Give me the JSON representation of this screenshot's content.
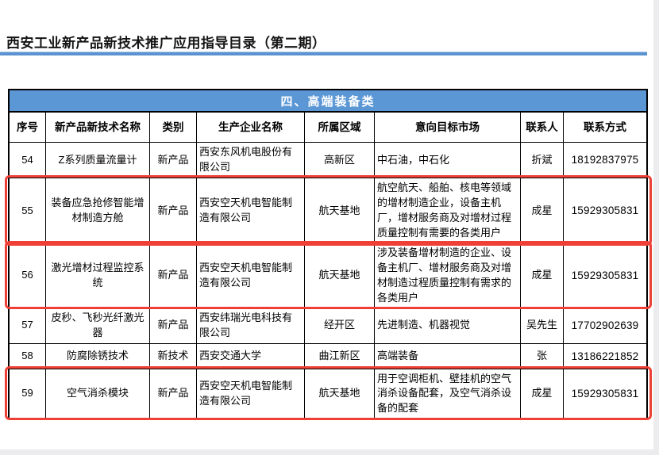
{
  "page": {
    "title": "西安工业新产品新技术推广应用指导目录（第二期）"
  },
  "table": {
    "section_title": "四、高端装备类",
    "columns": [
      "序号",
      "新产品新技术名称",
      "类别",
      "生产企业名称",
      "所属区域",
      "意向目标市场",
      "联系人",
      "联系方式"
    ],
    "rows": [
      {
        "no": "54",
        "name": "Z系列质量流量计",
        "category": "新产品",
        "company": "西安东风机电股份有限公司",
        "region": "高新区",
        "market": "中石油，中石化",
        "contact": "折斌",
        "phone": "18192837975",
        "highlighted": false
      },
      {
        "no": "55",
        "name": "装备应急抢修智能增材制造方舱",
        "category": "新产品",
        "company": "西安空天机电智能制造有限公司",
        "region": "航天基地",
        "market": "航空航天、船舶、核电等领域的增材制造企业，设备主机厂，增材服务商及对增材过程质量控制有需要的各类用户",
        "contact": "成星",
        "phone": "15929305831",
        "highlighted": true
      },
      {
        "no": "56",
        "name": "激光增材过程监控系统",
        "category": "新产品",
        "company": "西安空天机电智能制造有限公司",
        "region": "航天基地",
        "market": "涉及装备增材制造的企业、设备主机厂、增材服务商及对增材制造过程质量控制有需求的各类用户",
        "contact": "成星",
        "phone": "15929305831",
        "highlighted": true
      },
      {
        "no": "57",
        "name": "皮秒、飞秒光纤激光器",
        "category": "新产品",
        "company": "西安纬瑞光电科技有限公司",
        "region": "经开区",
        "market": "先进制造、机器视觉",
        "contact": "吴先生",
        "phone": "17702902639",
        "highlighted": false
      },
      {
        "no": "58",
        "name": "防腐除锈技术",
        "category": "新技术",
        "company": "西安交通大学",
        "region": "曲江新区",
        "market": "高端装备",
        "contact": "张",
        "phone": "13186221852",
        "highlighted": false
      },
      {
        "no": "59",
        "name": "空气消杀模块",
        "category": "新产品",
        "company": "西安空天机电智能制造有限公司",
        "region": "航天基地",
        "market": "用于空调柜机、壁挂机的空气消杀设备配套，及空气消杀设备的配套",
        "contact": "成星",
        "phone": "15929305831",
        "highlighted": true
      }
    ]
  },
  "colors": {
    "accent_blue": "#5b97d5",
    "highlight_red": "#ee4036"
  }
}
